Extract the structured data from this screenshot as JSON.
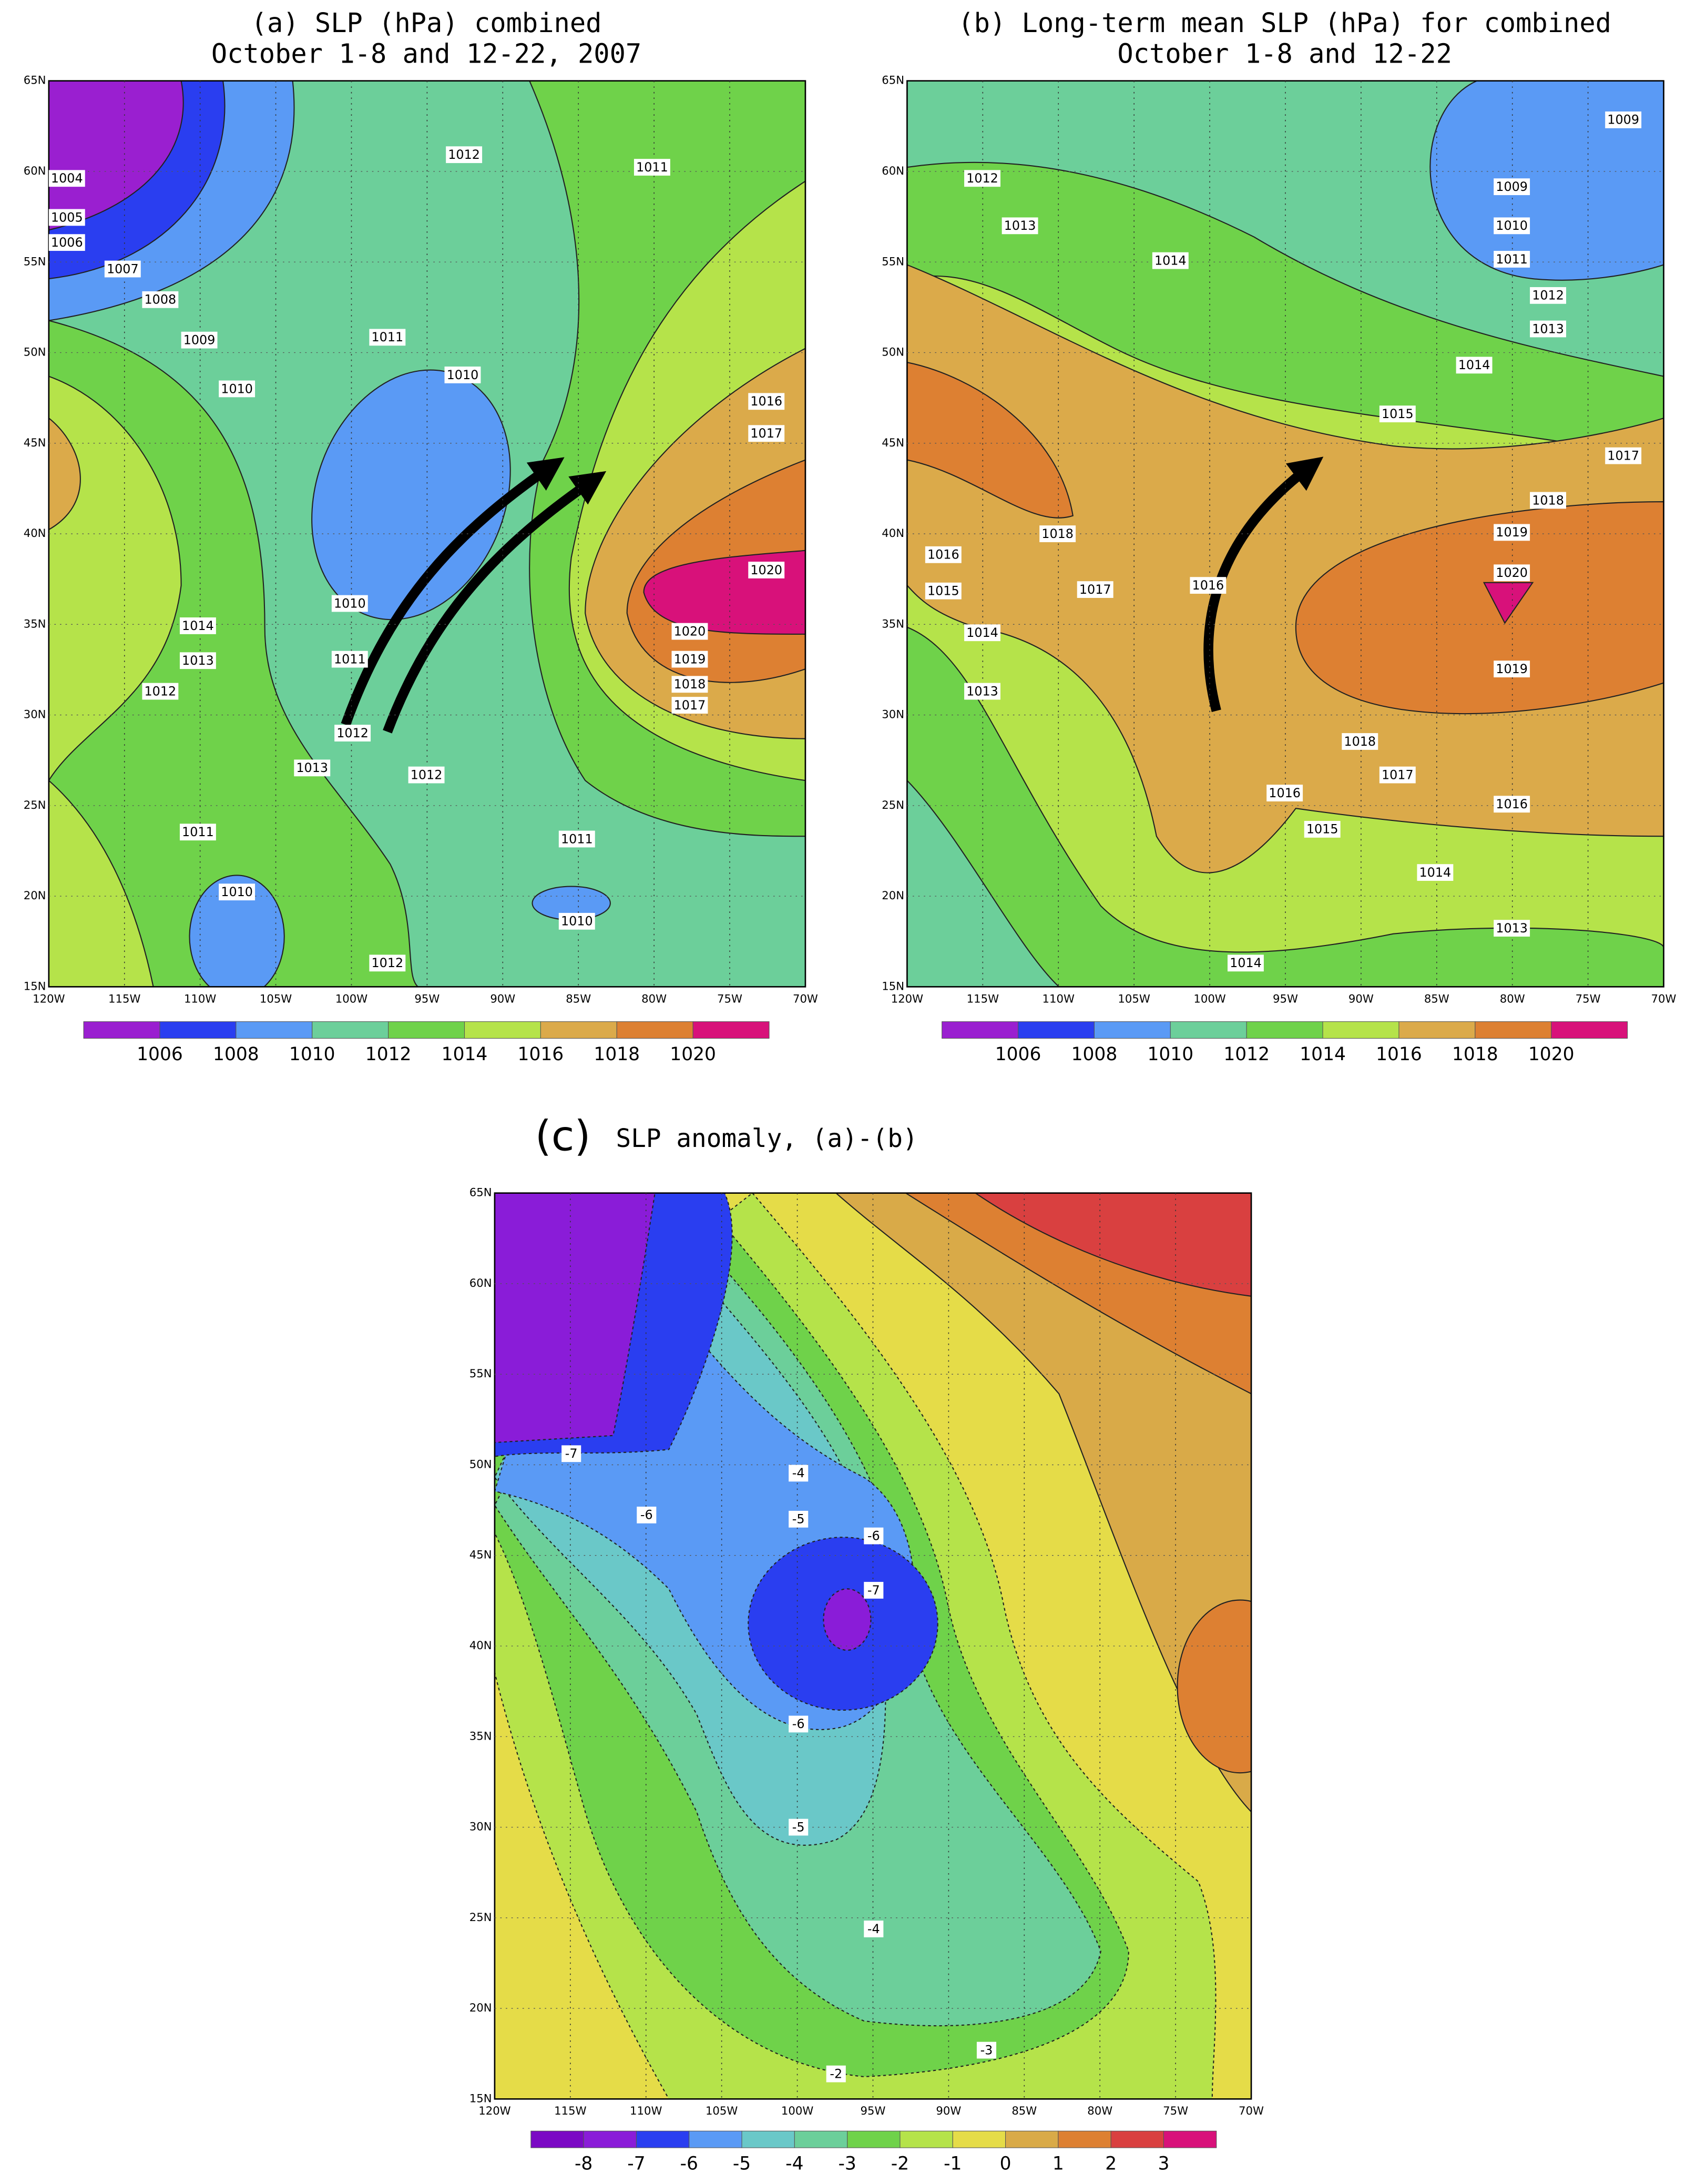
{
  "panels": [
    {
      "title": [
        "(a) SLP (hPa) combined",
        "October 1-8 and 12-22, 2007"
      ],
      "lat_labels": [
        "65N",
        "60N",
        "55N",
        "50N",
        "45N",
        "40N",
        "35N",
        "30N",
        "25N",
        "20N",
        "15N"
      ],
      "lon_labels": [
        "120W",
        "115W",
        "110W",
        "105W",
        "100W",
        "95W",
        "90W",
        "85W",
        "80W",
        "75W",
        "70W"
      ],
      "colorbar_colors": [
        "#9a1fd0",
        "#2a3ef0",
        "#5a9af5",
        "#6ccf9a",
        "#6fd24a",
        "#b5e34a",
        "#dbaa4a",
        "#dd8032",
        "#d8117a"
      ],
      "colorbar_labels": [
        1006,
        1008,
        1010,
        1012,
        1014,
        1016,
        1018,
        1020
      ],
      "contour_labels": [
        1004,
        1005,
        1006,
        1007,
        1008,
        1009,
        1010,
        1011,
        1010,
        1012,
        1011,
        1016,
        1017,
        1020,
        1020,
        1019,
        1018,
        1017,
        1010,
        1011,
        1012,
        1014,
        1013,
        1012,
        1013,
        1012,
        1011,
        1010,
        1011,
        1010,
        1012
      ]
    },
    {
      "title": [
        "(b) Long-term mean SLP (hPa) for combined",
        "October 1-8 and 12-22"
      ],
      "lat_labels": [
        "65N",
        "60N",
        "55N",
        "50N",
        "45N",
        "40N",
        "35N",
        "30N",
        "25N",
        "20N",
        "15N"
      ],
      "lon_labels": [
        "120W",
        "115W",
        "110W",
        "105W",
        "100W",
        "95W",
        "90W",
        "85W",
        "80W",
        "75W",
        "70W"
      ],
      "colorbar_colors": [
        "#9a1fd0",
        "#2a3ef0",
        "#5a9af5",
        "#6ccf9a",
        "#6fd24a",
        "#b5e34a",
        "#dbaa4a",
        "#dd8032",
        "#d8117a"
      ],
      "colorbar_labels": [
        1006,
        1008,
        1010,
        1012,
        1014,
        1016,
        1018,
        1020
      ],
      "contour_labels": [
        1009,
        1009,
        1010,
        1011,
        1012,
        1013,
        1014,
        1015,
        1017,
        1012,
        1013,
        1014,
        1018,
        1019,
        1020,
        1019,
        1018,
        1017,
        1016,
        1016,
        1015,
        1014,
        1013,
        1014,
        1018,
        1017,
        1016,
        1016,
        1015,
        1014,
        1013
      ]
    },
    {
      "title": [
        "(c)",
        "SLP anomaly, (a)-(b)"
      ],
      "lat_labels": [
        "65N",
        "60N",
        "55N",
        "50N",
        "45N",
        "40N",
        "35N",
        "30N",
        "25N",
        "20N",
        "15N"
      ],
      "lon_labels": [
        "120W",
        "115W",
        "110W",
        "105W",
        "100W",
        "95W",
        "90W",
        "85W",
        "80W",
        "75W",
        "70W"
      ],
      "colorbar_colors": [
        "#7b09c4",
        "#8a1cd8",
        "#2a3ef0",
        "#5a9af5",
        "#6ac8c8",
        "#6ccf9a",
        "#6fd24a",
        "#b5e34a",
        "#e5dc48",
        "#d9aa48",
        "#dd8032",
        "#d94040",
        "#d8117a"
      ],
      "colorbar_labels": [
        -8,
        -7,
        -6,
        -5,
        -4,
        -3,
        -2,
        -1,
        0,
        1,
        2,
        3
      ],
      "contour_labels": [
        -7,
        -6,
        -4,
        -5,
        -6,
        -7,
        -6,
        -5,
        -4,
        -3,
        -2
      ]
    }
  ]
}
